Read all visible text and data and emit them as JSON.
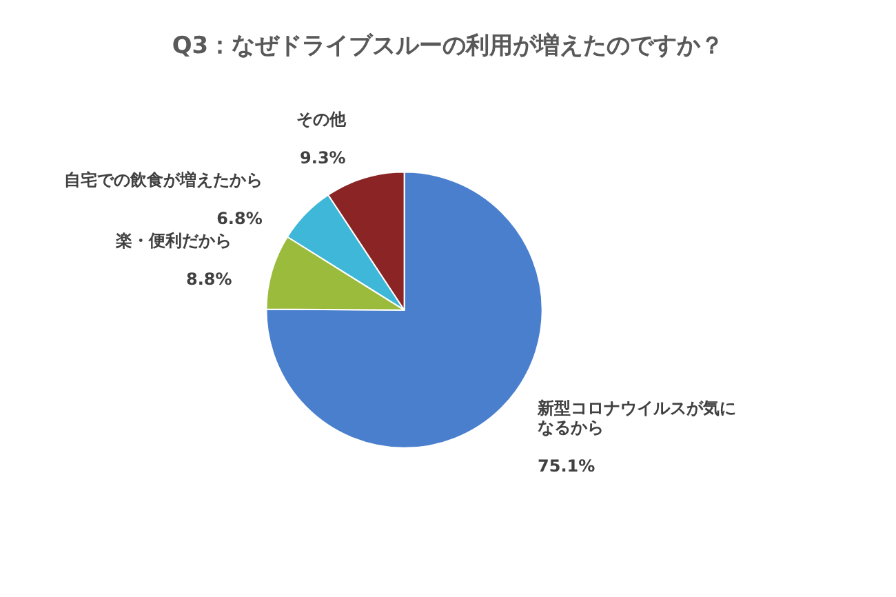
{
  "chart_data": {
    "type": "pie",
    "title": "Q3：なぜドライブスルーの利用が増えたのですか？",
    "categories": [
      "新型コロナウイルスが気になるから",
      "楽・便利だから",
      "自宅での飲食が増えたから",
      "その他"
    ],
    "value_labels": [
      "75.1%",
      "8.8%",
      "6.8%",
      "9.3%"
    ],
    "values": [
      75.1,
      8.8,
      6.8,
      9.3
    ],
    "colors": [
      "#4a7fce",
      "#9bbb3c",
      "#3fb7d8",
      "#8b2424"
    ],
    "data_labels": true,
    "legend": false
  }
}
